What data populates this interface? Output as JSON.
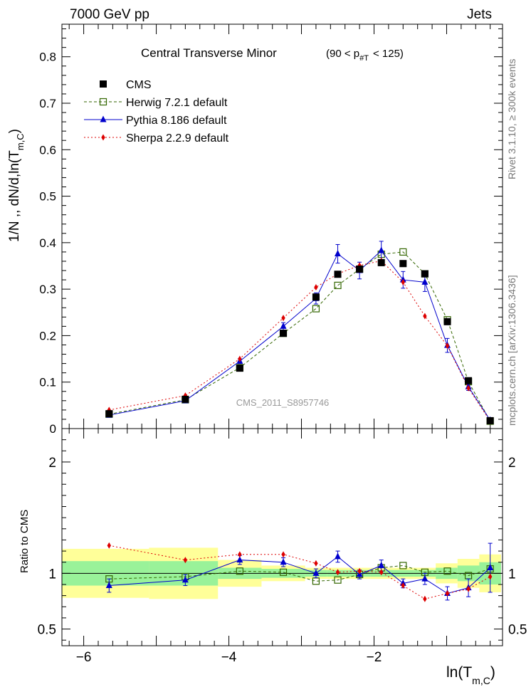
{
  "header": {
    "energy_label": "7000 GeV pp",
    "process_label": "Jets"
  },
  "side_labels": {
    "rivet": "Rivet 3.1.10, ≥ 300k events",
    "mcplots": "mcplots.cern.ch [arXiv:1306.3436]"
  },
  "watermark": "CMS_2011_S8957746",
  "chart_data": [
    {
      "type": "line",
      "title": "Central Transverse Minor",
      "title_range": "(90 < p",
      "title_range_sub": "#T",
      "title_range_end": "< 125)",
      "ylabel": "1/N ,, dN/d,ln(T",
      "ylabel_sub": "m,C",
      "ylabel_end": ")",
      "xlim": [
        -6.3,
        -0.23
      ],
      "ylim": [
        0,
        0.87
      ],
      "yticks": [
        0,
        0.1,
        0.2,
        0.3,
        0.4,
        0.5,
        0.6,
        0.7,
        0.8
      ],
      "ytick_labels": [
        "0",
        "0.1",
        "0.2",
        "0.3",
        "0.4",
        "0.5",
        "0.6",
        "0.7",
        "0.8"
      ],
      "legend_position": "top-left",
      "series": [
        {
          "name": "CMS",
          "color": "#000000",
          "marker": "square-filled",
          "x": [
            -5.65,
            -4.6,
            -3.85,
            -3.25,
            -2.8,
            -2.5,
            -2.2,
            -1.9,
            -1.6,
            -1.3,
            -0.99,
            -0.7,
            -0.4
          ],
          "y": [
            0.032,
            0.063,
            0.13,
            0.205,
            0.283,
            0.332,
            0.343,
            0.357,
            0.355,
            0.333,
            0.23,
            0.103,
            0.017
          ]
        },
        {
          "name": "Herwig 7.2.1 default",
          "color": "#336600",
          "marker": "square-open",
          "dash": "4,3",
          "x": [
            -5.65,
            -4.6,
            -3.85,
            -3.25,
            -2.8,
            -2.5,
            -2.2,
            -1.9,
            -1.6,
            -1.3,
            -0.99,
            -0.7,
            -0.4
          ],
          "y": [
            0.031,
            0.062,
            0.131,
            0.205,
            0.258,
            0.308,
            0.343,
            0.375,
            0.38,
            0.333,
            0.234,
            0.101,
            0.016
          ]
        },
        {
          "name": "Pythia 8.186 default",
          "color": "#0000cc",
          "marker": "triangle-filled",
          "dash": "",
          "x": [
            -5.65,
            -4.6,
            -3.85,
            -3.25,
            -2.8,
            -2.5,
            -2.2,
            -1.9,
            -1.6,
            -1.3,
            -0.99,
            -0.7,
            -0.4
          ],
          "y": [
            0.029,
            0.06,
            0.145,
            0.22,
            0.28,
            0.376,
            0.34,
            0.383,
            0.32,
            0.315,
            0.179,
            0.09,
            0.018
          ],
          "yerr": [
            0.002,
            0.003,
            0.005,
            0.008,
            0.012,
            0.02,
            0.018,
            0.02,
            0.018,
            0.02,
            0.015,
            0.008,
            0.004
          ]
        },
        {
          "name": "Sherpa 2.2.9 default",
          "color": "#dd0000",
          "marker": "diamond-filled",
          "dash": "2,3",
          "x": [
            -5.65,
            -4.6,
            -3.85,
            -3.25,
            -2.8,
            -2.5,
            -2.2,
            -1.9,
            -1.6,
            -1.3,
            -0.99,
            -0.7,
            -0.4
          ],
          "y": [
            0.04,
            0.071,
            0.15,
            0.238,
            0.304,
            0.333,
            0.351,
            0.361,
            0.315,
            0.242,
            0.178,
            0.087,
            0.016
          ]
        }
      ]
    },
    {
      "type": "line",
      "title": "",
      "ylabel": "Ratio to CMS",
      "xlabel": "ln(T",
      "xlabel_sub": "m,C",
      "xlabel_end": ")",
      "xlim": [
        -6.3,
        -0.23
      ],
      "ylim": [
        0.35,
        2.3
      ],
      "yticks": [
        0.5,
        1,
        2
      ],
      "ytick_labels": [
        "0.5",
        "1",
        "2"
      ],
      "xticks": [
        -6,
        -4,
        -2
      ],
      "xtick_labels": [
        "−6",
        "−4",
        "−2"
      ],
      "bands": {
        "edges": [
          -6.3,
          -5.1,
          -4.15,
          -3.55,
          -2.95,
          -2.65,
          -2.35,
          -2.05,
          -1.75,
          -1.45,
          -1.15,
          -0.85,
          -0.55,
          -0.25
        ],
        "green_lo": [
          0.89,
          0.89,
          0.95,
          0.96,
          0.97,
          0.97,
          0.97,
          0.97,
          0.97,
          0.97,
          0.95,
          0.93,
          0.9
        ],
        "green_hi": [
          1.11,
          1.11,
          1.05,
          1.04,
          1.03,
          1.03,
          1.03,
          1.03,
          1.03,
          1.03,
          1.05,
          1.07,
          1.1
        ],
        "yellow_lo": [
          0.78,
          0.77,
          0.88,
          0.93,
          0.95,
          0.95,
          0.95,
          0.95,
          0.95,
          0.95,
          0.91,
          0.87,
          0.83
        ],
        "yellow_hi": [
          1.22,
          1.23,
          1.12,
          1.07,
          1.05,
          1.05,
          1.05,
          1.05,
          1.05,
          1.05,
          1.09,
          1.13,
          1.17
        ],
        "green_color": "#99f299",
        "yellow_color": "#ffff99"
      },
      "series": [
        {
          "name": "Herwig 7.2.1 default",
          "color": "#336600",
          "marker": "square-open",
          "dash": "4,3",
          "x": [
            -5.65,
            -4.6,
            -3.85,
            -3.25,
            -2.8,
            -2.5,
            -2.2,
            -1.9,
            -1.6,
            -1.3,
            -0.99,
            -0.7,
            -0.4
          ],
          "y": [
            0.95,
            0.97,
            1.02,
            1.01,
            0.93,
            0.94,
            0.99,
            1.05,
            1.07,
            1.01,
            1.02,
            0.98,
            1.04
          ]
        },
        {
          "name": "Pythia 8.186 default",
          "color": "#0000cc",
          "marker": "triangle-filled",
          "dash": "",
          "x": [
            -5.65,
            -4.6,
            -3.85,
            -3.25,
            -2.8,
            -2.5,
            -2.2,
            -1.9,
            -1.6,
            -1.3,
            -0.99,
            -0.7,
            -0.4
          ],
          "y": [
            0.89,
            0.94,
            1.12,
            1.1,
            1.0,
            1.15,
            0.99,
            1.07,
            0.91,
            0.95,
            0.82,
            0.87,
            1.05
          ],
          "yerr": [
            0.06,
            0.05,
            0.04,
            0.04,
            0.04,
            0.05,
            0.04,
            0.05,
            0.04,
            0.05,
            0.06,
            0.08,
            0.22
          ]
        },
        {
          "name": "Sherpa 2.2.9 default",
          "color": "#dd0000",
          "marker": "diamond-filled",
          "dash": "2,3",
          "x": [
            -5.65,
            -4.6,
            -3.85,
            -3.25,
            -2.8,
            -2.5,
            -2.2,
            -1.9,
            -1.6,
            -1.3,
            -0.99,
            -0.7,
            -0.4
          ],
          "y": [
            1.25,
            1.12,
            1.17,
            1.17,
            1.09,
            1.01,
            1.02,
            1.01,
            0.89,
            0.77,
            0.82,
            0.86,
            0.97
          ]
        }
      ]
    }
  ]
}
